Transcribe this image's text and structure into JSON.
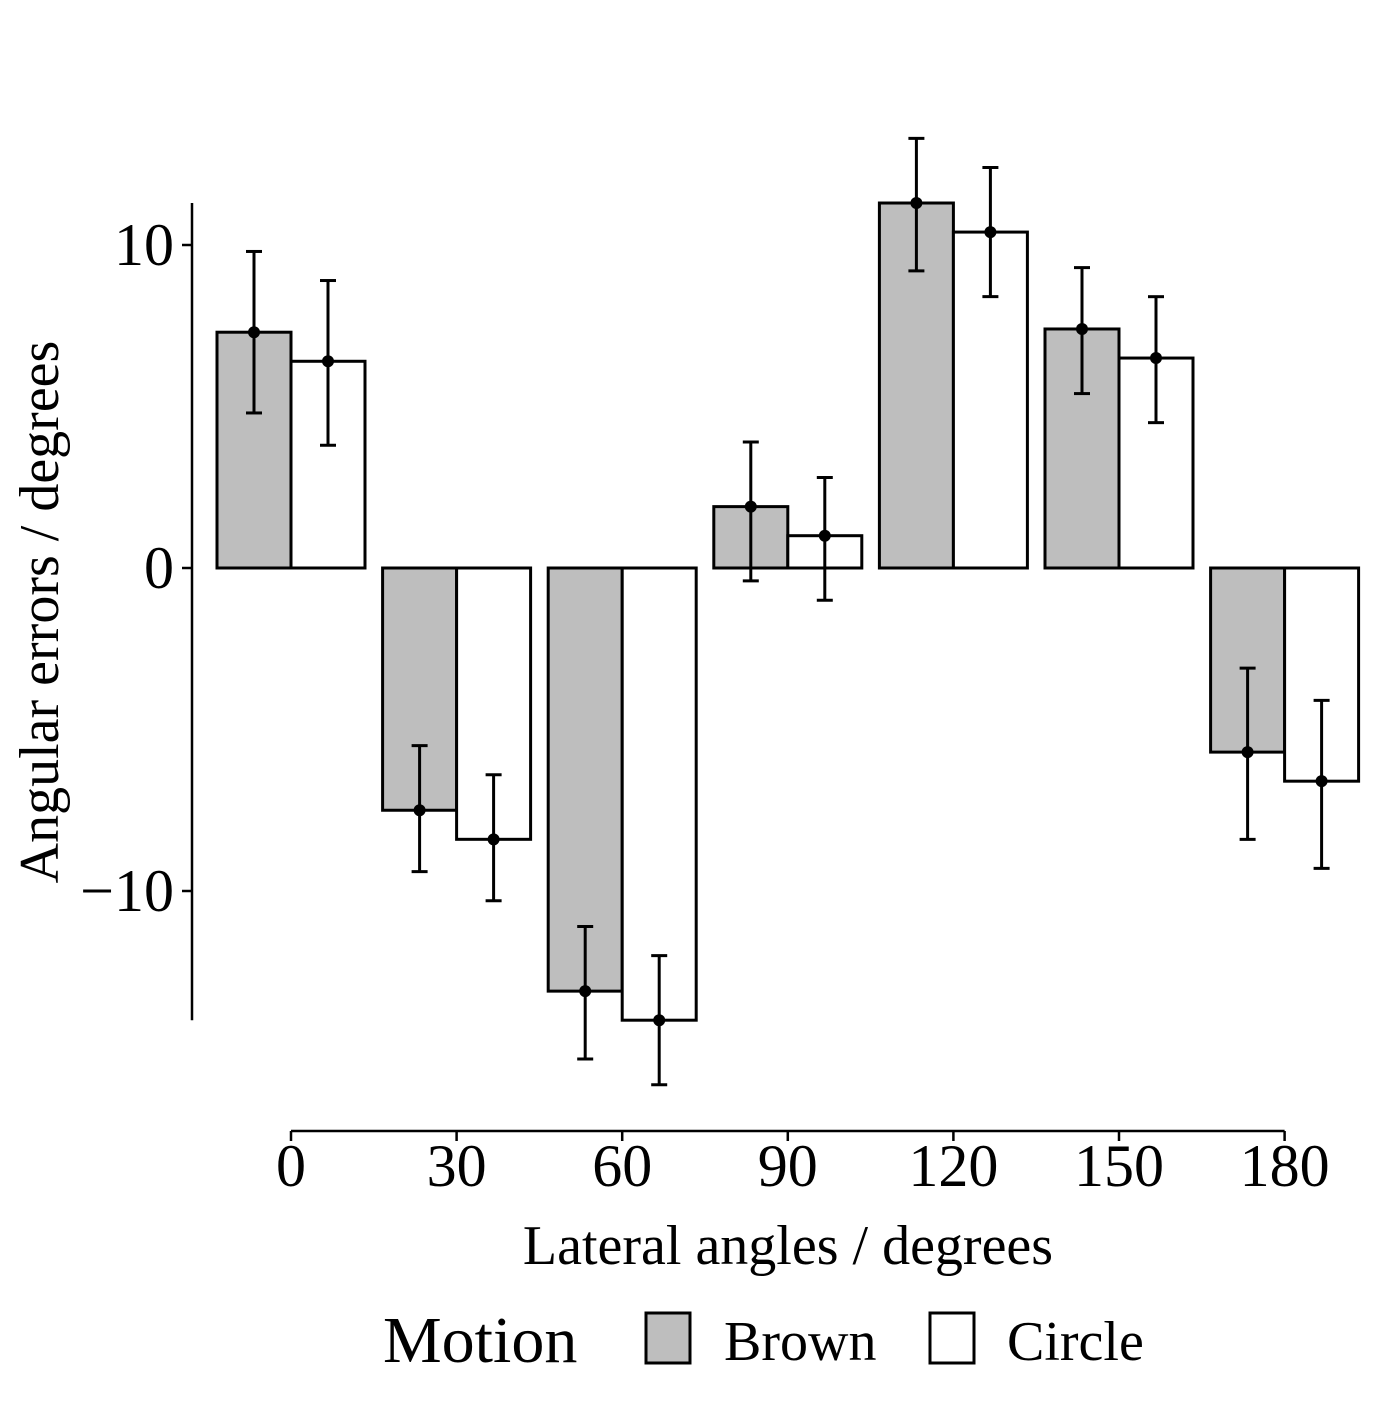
{
  "chart_data": {
    "type": "bar",
    "categories": [
      "0",
      "30",
      "60",
      "90",
      "120",
      "150",
      "180"
    ],
    "series": [
      {
        "name": "Brown",
        "values": [
          7.3,
          -7.5,
          -13.1,
          1.9,
          11.3,
          7.4,
          -5.7
        ],
        "err_low": [
          4.8,
          -9.4,
          -15.2,
          -0.4,
          9.2,
          5.4,
          -8.4
        ],
        "err_high": [
          9.8,
          -5.5,
          -11.1,
          3.9,
          13.3,
          9.3,
          -3.1
        ]
      },
      {
        "name": "Circle",
        "values": [
          6.4,
          -8.4,
          -14.0,
          1.0,
          10.4,
          6.5,
          -6.6
        ],
        "err_low": [
          3.8,
          -10.3,
          -16.0,
          -1.0,
          8.4,
          4.5,
          -9.3
        ],
        "err_high": [
          8.9,
          -6.4,
          -12.0,
          2.8,
          12.4,
          8.4,
          -4.1
        ]
      }
    ],
    "colors": {
      "Brown": "#bebebe",
      "Circle": "#ffffff",
      "outline": "#000000"
    },
    "xlabel": "Lateral angles / degrees",
    "ylabel": "Angular errors / degrees",
    "yticks": [
      -10,
      0,
      10
    ],
    "ytick_labels": [
      "−10",
      "0",
      "10"
    ],
    "ylim": [
      -14,
      11.3
    ],
    "legend": {
      "title": "Motion",
      "position": "bottom"
    },
    "grid": false
  }
}
